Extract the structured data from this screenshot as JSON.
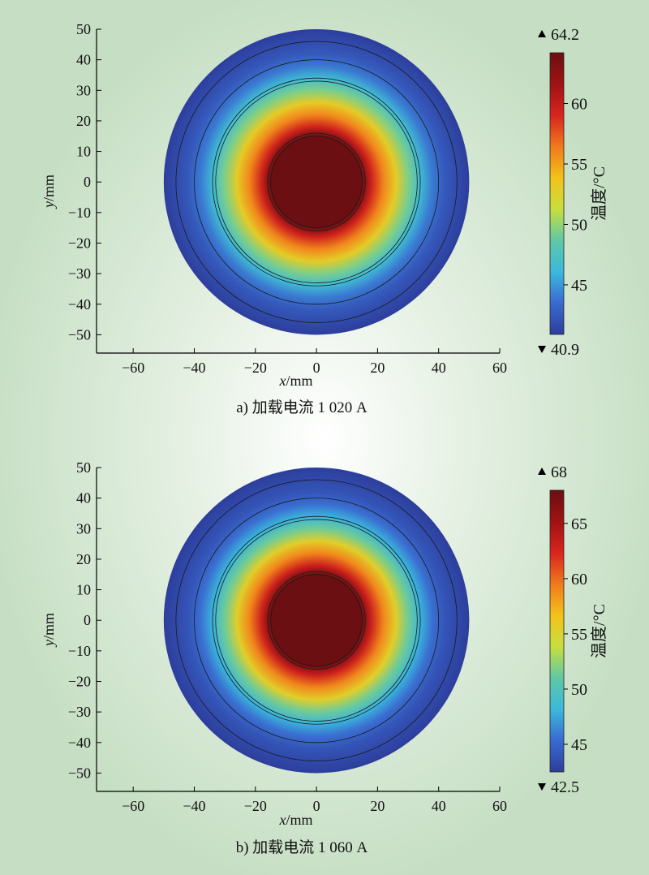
{
  "chart_data": [
    {
      "type": "heatmap",
      "caption": "a) 加载电流 1 020 A",
      "xlabel_var": "x",
      "xlabel_unit": "/mm",
      "ylabel_var": "y",
      "ylabel_unit": "/mm",
      "xlim": [
        -72,
        60
      ],
      "ylim": [
        -56,
        50
      ],
      "xticks": [
        -60,
        -40,
        -20,
        0,
        20,
        40,
        60
      ],
      "yticks": [
        50,
        40,
        30,
        20,
        10,
        0,
        -10,
        -20,
        -30,
        -40,
        -50
      ],
      "cable_outer_radius": 50,
      "boundary_radii": [
        15,
        16,
        33,
        34,
        40,
        46
      ],
      "temp_profile_r": [
        0,
        15,
        18,
        22,
        26,
        30,
        34,
        38,
        42,
        50
      ],
      "temp_profile_t": [
        64.2,
        64.2,
        59.5,
        56,
        53,
        49.5,
        46.5,
        44,
        42.5,
        40.9
      ],
      "colorbar": {
        "title": "温度/°C",
        "min": 40.9,
        "max": 64.2,
        "min_label": "40.9",
        "max_label": "64.2",
        "ticks": [
          45,
          50,
          55,
          60
        ],
        "colors": [
          "#2d3e9c",
          "#3a6ad0",
          "#3ab9dc",
          "#5fc8a6",
          "#c7df3e",
          "#f3c21a",
          "#f07a1c",
          "#d9241e",
          "#a01214",
          "#6b0f12"
        ]
      }
    },
    {
      "type": "heatmap",
      "caption": "b) 加载电流 1 060 A",
      "xlabel_var": "x",
      "xlabel_unit": "/mm",
      "ylabel_var": "y",
      "ylabel_unit": "/mm",
      "xlim": [
        -72,
        60
      ],
      "ylim": [
        -56,
        50
      ],
      "xticks": [
        -60,
        -40,
        -20,
        0,
        20,
        40,
        60
      ],
      "yticks": [
        50,
        40,
        30,
        20,
        10,
        0,
        -10,
        -20,
        -30,
        -40,
        -50
      ],
      "cable_outer_radius": 50,
      "boundary_radii": [
        15,
        16,
        33,
        34,
        40,
        46
      ],
      "temp_profile_r": [
        0,
        15,
        18,
        22,
        26,
        30,
        34,
        38,
        42,
        50
      ],
      "temp_profile_t": [
        68,
        68,
        63,
        59,
        55.5,
        51.5,
        48,
        45.5,
        44,
        42.5
      ],
      "colorbar": {
        "title": "温度/°C",
        "min": 42.5,
        "max": 68,
        "min_label": "42.5",
        "max_label": "68",
        "ticks": [
          45,
          50,
          55,
          60,
          65
        ],
        "colors": [
          "#2d3e9c",
          "#3a6ad0",
          "#3ab9dc",
          "#5fc8a6",
          "#c7df3e",
          "#f3c21a",
          "#f07a1c",
          "#d9241e",
          "#a01214",
          "#6b0f12"
        ]
      }
    }
  ]
}
